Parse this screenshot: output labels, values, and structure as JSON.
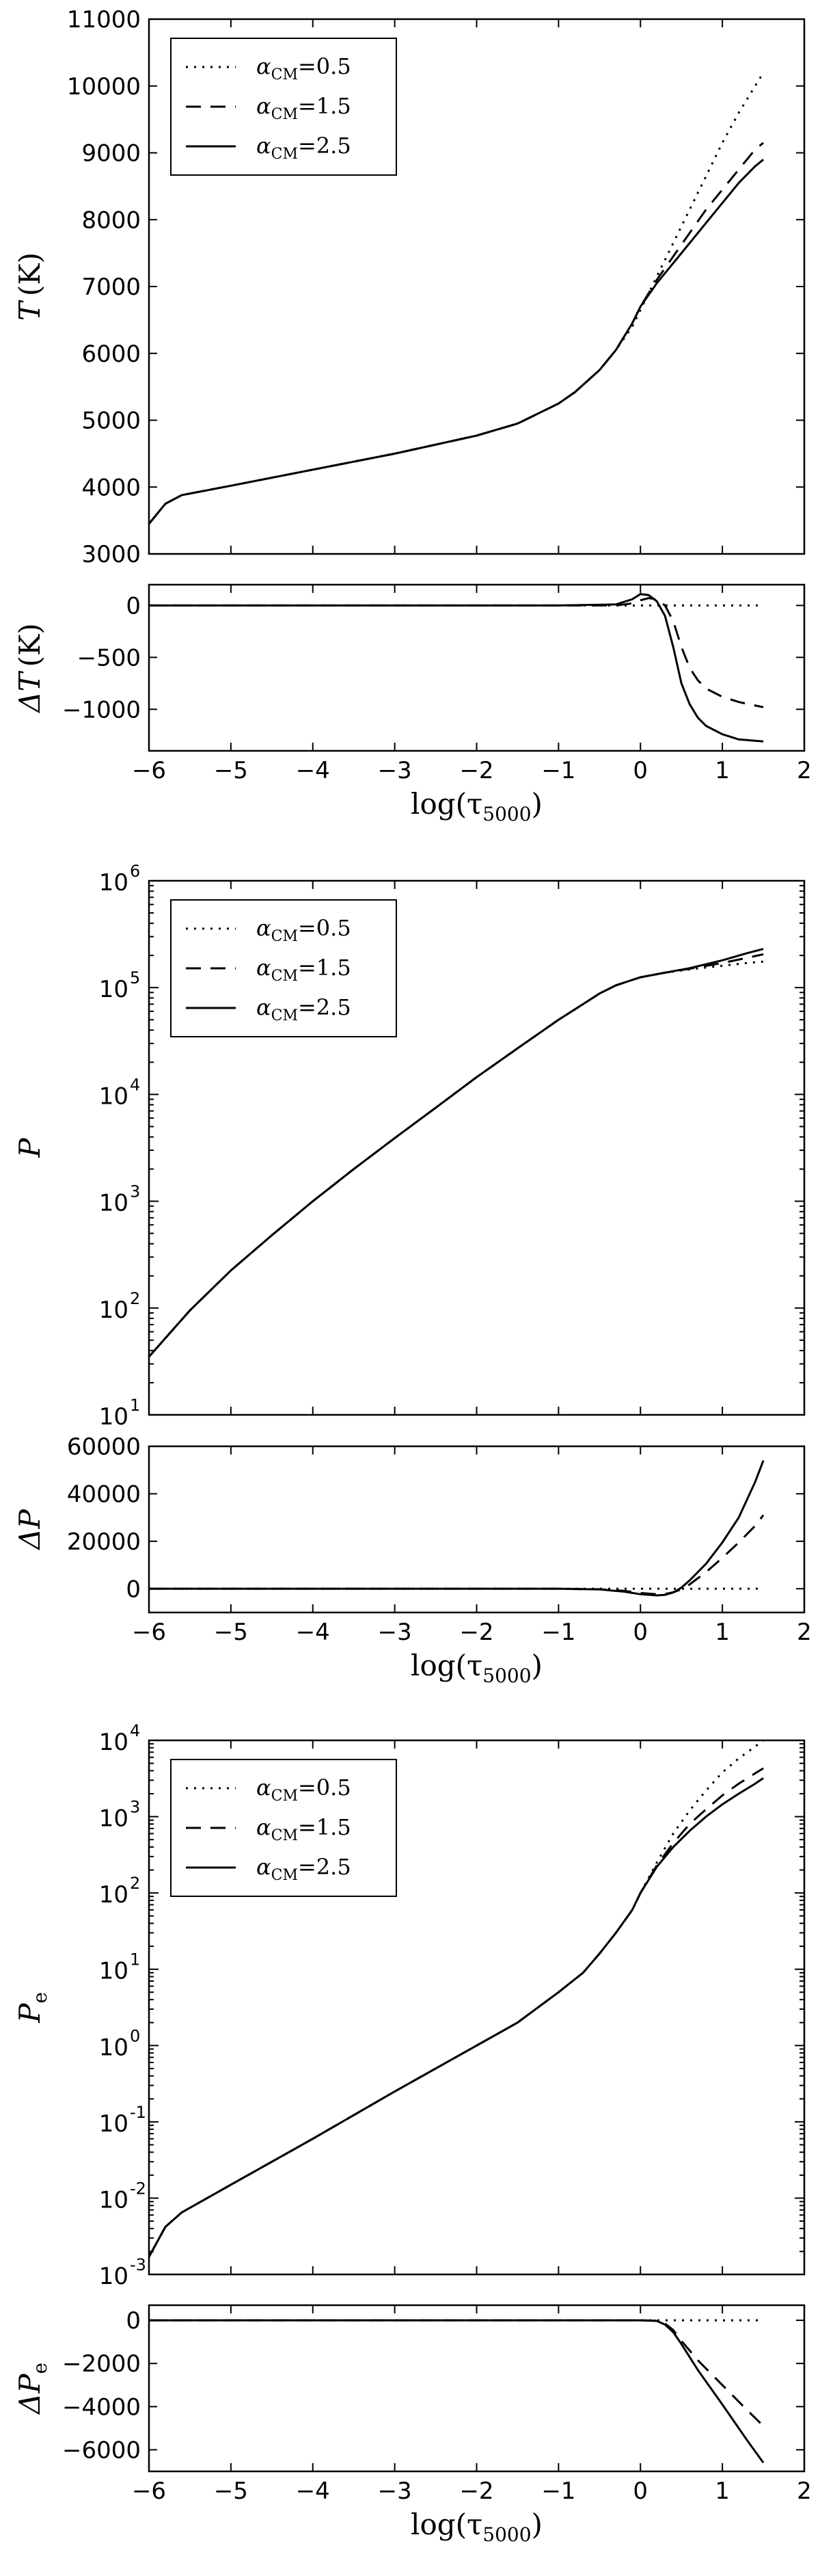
{
  "chart_data": [
    {
      "type": "line",
      "ylabel": "T (K)",
      "ylabel_main": "T",
      "ylabel_unit": "(K)",
      "xlim": [
        -6,
        2
      ],
      "ylim": [
        3000,
        11000
      ],
      "yscale": "linear",
      "xticks": [
        -6,
        -5,
        -4,
        -3,
        -2,
        -1,
        0,
        1,
        2
      ],
      "yticks": [
        3000,
        4000,
        5000,
        6000,
        7000,
        8000,
        9000,
        10000,
        11000
      ],
      "show_xticklabels": false,
      "legend": "top-left",
      "series": [
        {
          "name": "α_CM = 0.5",
          "label_main": "α",
          "label_sub": "CM",
          "label_value": "=0.5",
          "style": "dotted",
          "x": [
            -6,
            -5.8,
            -5.6,
            -5,
            -4,
            -3,
            -2,
            -1.5,
            -1,
            -0.8,
            -0.5,
            -0.3,
            -0.1,
            0,
            0.2,
            0.4,
            0.6,
            0.8,
            1,
            1.2,
            1.4,
            1.5
          ],
          "y": [
            3450,
            3750,
            3880,
            4020,
            4260,
            4500,
            4770,
            4950,
            5250,
            5420,
            5750,
            6050,
            6400,
            6650,
            7150,
            7650,
            8150,
            8650,
            9150,
            9600,
            10000,
            10200
          ]
        },
        {
          "name": "α_CM = 1.5",
          "label_main": "α",
          "label_sub": "CM",
          "label_value": "=1.5",
          "style": "dashed",
          "x": [
            -6,
            -5.8,
            -5.6,
            -5,
            -4,
            -3,
            -2,
            -1.5,
            -1,
            -0.8,
            -0.5,
            -0.3,
            -0.1,
            0,
            0.2,
            0.4,
            0.6,
            0.8,
            1,
            1.2,
            1.4,
            1.5
          ],
          "y": [
            3450,
            3750,
            3880,
            4020,
            4260,
            4500,
            4770,
            4950,
            5250,
            5420,
            5750,
            6050,
            6450,
            6700,
            7100,
            7450,
            7800,
            8150,
            8450,
            8750,
            9050,
            9150
          ]
        },
        {
          "name": "α_CM = 2.5",
          "label_main": "α",
          "label_sub": "CM",
          "label_value": "=2.5",
          "style": "solid",
          "x": [
            -6,
            -5.8,
            -5.6,
            -5,
            -4,
            -3,
            -2,
            -1.5,
            -1,
            -0.8,
            -0.5,
            -0.3,
            -0.1,
            0,
            0.2,
            0.4,
            0.6,
            0.8,
            1,
            1.2,
            1.4,
            1.5
          ],
          "y": [
            3450,
            3750,
            3880,
            4020,
            4260,
            4500,
            4770,
            4950,
            5250,
            5420,
            5750,
            6050,
            6450,
            6700,
            7050,
            7350,
            7650,
            7950,
            8250,
            8550,
            8800,
            8900
          ]
        }
      ]
    },
    {
      "type": "line",
      "ylabel": "ΔT (K)",
      "ylabel_main": "ΔT",
      "ylabel_unit": "(K)",
      "xlabel": "log(τ5000)",
      "xlabel_main": "log(τ",
      "xlabel_sub": "5000",
      "xlabel_close": ")",
      "xlim": [
        -6,
        2
      ],
      "ylim": [
        -1400,
        200
      ],
      "yscale": "linear",
      "xticks": [
        -6,
        -5,
        -4,
        -3,
        -2,
        -1,
        0,
        1,
        2
      ],
      "yticks": [
        -1000,
        -500,
        0
      ],
      "show_xticklabels": true,
      "series": [
        {
          "name": "α_CM = 0.5",
          "style": "dotted",
          "x": [
            -6,
            -5,
            -4,
            -3,
            -2,
            -1,
            0,
            0.5,
            1,
            1.5
          ],
          "y": [
            0,
            0,
            0,
            0,
            0,
            0,
            0,
            0,
            0,
            0
          ]
        },
        {
          "name": "α_CM = 1.5",
          "style": "dashed",
          "x": [
            -6,
            -4,
            -2,
            -1,
            -0.3,
            -0.1,
            0,
            0.1,
            0.2,
            0.3,
            0.4,
            0.5,
            0.6,
            0.7,
            0.8,
            1.0,
            1.2,
            1.5
          ],
          "y": [
            0,
            0,
            0,
            0,
            0,
            20,
            50,
            70,
            60,
            0,
            -150,
            -400,
            -600,
            -720,
            -800,
            -880,
            -930,
            -980
          ]
        },
        {
          "name": "α_CM = 2.5",
          "style": "solid",
          "x": [
            -6,
            -4,
            -2,
            -1,
            -0.3,
            -0.1,
            0,
            0.1,
            0.2,
            0.3,
            0.4,
            0.5,
            0.6,
            0.7,
            0.8,
            1.0,
            1.2,
            1.5
          ],
          "y": [
            0,
            0,
            0,
            0,
            10,
            60,
            110,
            100,
            40,
            -100,
            -400,
            -750,
            -950,
            -1080,
            -1160,
            -1240,
            -1290,
            -1310
          ]
        }
      ]
    },
    {
      "type": "line",
      "ylabel": "P",
      "ylabel_main": "P",
      "xlim": [
        -6,
        2
      ],
      "ylim": [
        10,
        1000000
      ],
      "yscale": "log",
      "xticks": [
        -6,
        -5,
        -4,
        -3,
        -2,
        -1,
        0,
        1,
        2
      ],
      "ytick_exponents": [
        1,
        2,
        3,
        4,
        5,
        6
      ],
      "show_xticklabels": false,
      "legend": "top-left",
      "series": [
        {
          "name": "α_CM = 0.5",
          "label_main": "α",
          "label_sub": "CM",
          "label_value": "=0.5",
          "style": "dotted",
          "x": [
            -6,
            -5.5,
            -5,
            -4.5,
            -4,
            -3.5,
            -3,
            -2.5,
            -2,
            -1.5,
            -1,
            -0.7,
            -0.5,
            -0.3,
            -0.1,
            0,
            0.3,
            0.6,
            1,
            1.3,
            1.5
          ],
          "y": [
            35,
            95,
            225,
            480,
            1000,
            2000,
            3900,
            7500,
            14500,
            27000,
            50000,
            70000,
            88000,
            105000,
            118000,
            125000,
            138000,
            148000,
            160000,
            170000,
            175000
          ]
        },
        {
          "name": "α_CM = 1.5",
          "label_main": "α",
          "label_sub": "CM",
          "label_value": "=1.5",
          "style": "dashed",
          "x": [
            -6,
            -5.5,
            -5,
            -4.5,
            -4,
            -3.5,
            -3,
            -2.5,
            -2,
            -1.5,
            -1,
            -0.7,
            -0.5,
            -0.3,
            -0.1,
            0,
            0.3,
            0.6,
            1,
            1.3,
            1.5
          ],
          "y": [
            35,
            95,
            225,
            480,
            1000,
            2000,
            3900,
            7500,
            14500,
            27000,
            50000,
            70000,
            88000,
            105000,
            118000,
            125000,
            138000,
            150000,
            170000,
            190000,
            205000
          ]
        },
        {
          "name": "α_CM = 2.5",
          "label_main": "α",
          "label_sub": "CM",
          "label_value": "=2.5",
          "style": "solid",
          "x": [
            -6,
            -5.5,
            -5,
            -4.5,
            -4,
            -3.5,
            -3,
            -2.5,
            -2,
            -1.5,
            -1,
            -0.7,
            -0.5,
            -0.3,
            -0.1,
            0,
            0.3,
            0.6,
            1,
            1.3,
            1.5
          ],
          "y": [
            35,
            95,
            225,
            480,
            1000,
            2000,
            3900,
            7500,
            14500,
            27000,
            50000,
            70000,
            88000,
            105000,
            118000,
            125000,
            138000,
            152000,
            180000,
            210000,
            230000
          ]
        }
      ]
    },
    {
      "type": "line",
      "ylabel": "ΔP",
      "ylabel_main": "ΔP",
      "xlabel": "log(τ5000)",
      "xlabel_main": "log(τ",
      "xlabel_sub": "5000",
      "xlabel_close": ")",
      "xlim": [
        -6,
        2
      ],
      "ylim": [
        -10000,
        60000
      ],
      "yscale": "linear",
      "xticks": [
        -6,
        -5,
        -4,
        -3,
        -2,
        -1,
        0,
        1,
        2
      ],
      "yticks": [
        0,
        20000,
        40000,
        60000
      ],
      "show_xticklabels": true,
      "series": [
        {
          "name": "α_CM = 0.5",
          "style": "dotted",
          "x": [
            -6,
            -5,
            -4,
            -3,
            -2,
            -1,
            0,
            0.5,
            1,
            1.5
          ],
          "y": [
            0,
            0,
            0,
            0,
            0,
            0,
            0,
            0,
            0,
            0
          ]
        },
        {
          "name": "α_CM = 1.5",
          "style": "dashed",
          "x": [
            -6,
            -4,
            -2,
            -1,
            -0.5,
            -0.2,
            0,
            0.2,
            0.3,
            0.4,
            0.5,
            0.6,
            0.8,
            1.0,
            1.2,
            1.4,
            1.5
          ],
          "y": [
            0,
            0,
            0,
            0,
            -200,
            -900,
            -1800,
            -2300,
            -2200,
            -1500,
            -200,
            1800,
            7000,
            13000,
            19500,
            26500,
            31000
          ]
        },
        {
          "name": "α_CM = 2.5",
          "style": "solid",
          "x": [
            -6,
            -4,
            -2,
            -1,
            -0.5,
            -0.2,
            0,
            0.2,
            0.3,
            0.4,
            0.5,
            0.6,
            0.8,
            1.0,
            1.2,
            1.4,
            1.5
          ],
          "y": [
            0,
            0,
            0,
            0,
            -300,
            -1200,
            -2300,
            -2800,
            -2600,
            -1600,
            500,
            3500,
            10500,
            19500,
            30000,
            45000,
            54000
          ]
        }
      ]
    },
    {
      "type": "line",
      "ylabel": "Pe",
      "ylabel_main": "P",
      "ylabel_sub": "e",
      "xlim": [
        -6,
        2
      ],
      "ylim": [
        0.001,
        10000
      ],
      "yscale": "log",
      "xticks": [
        -6,
        -5,
        -4,
        -3,
        -2,
        -1,
        0,
        1,
        2
      ],
      "ytick_exponents": [
        -3,
        -2,
        -1,
        0,
        1,
        2,
        3,
        4
      ],
      "show_xticklabels": false,
      "legend": "top-left",
      "series": [
        {
          "name": "α_CM = 0.5",
          "label_main": "α",
          "label_sub": "CM",
          "label_value": "=0.5",
          "style": "dotted",
          "x": [
            -6,
            -5.8,
            -5.6,
            -5,
            -4,
            -3,
            -2,
            -1.5,
            -1,
            -0.7,
            -0.5,
            -0.3,
            -0.1,
            0,
            0.2,
            0.4,
            0.6,
            0.8,
            1.0,
            1.2,
            1.4,
            1.5
          ],
          "y": [
            0.0017,
            0.0042,
            0.0065,
            0.015,
            0.06,
            0.25,
            1.0,
            2.0,
            5.0,
            9.0,
            16,
            30,
            60,
            100,
            250,
            600,
            1200,
            2200,
            3800,
            5800,
            8300,
            10000
          ]
        },
        {
          "name": "α_CM = 1.5",
          "label_main": "α",
          "label_sub": "CM",
          "label_value": "=1.5",
          "style": "dashed",
          "x": [
            -6,
            -5.8,
            -5.6,
            -5,
            -4,
            -3,
            -2,
            -1.5,
            -1,
            -0.7,
            -0.5,
            -0.3,
            -0.1,
            0,
            0.2,
            0.4,
            0.6,
            0.8,
            1.0,
            1.2,
            1.4,
            1.5
          ],
          "y": [
            0.0017,
            0.0042,
            0.0065,
            0.015,
            0.06,
            0.25,
            1.0,
            2.0,
            5.0,
            9.0,
            16,
            30,
            60,
            100,
            230,
            450,
            800,
            1250,
            1900,
            2700,
            3700,
            4300
          ]
        },
        {
          "name": "α_CM = 2.5",
          "label_main": "α",
          "label_sub": "CM",
          "label_value": "=2.5",
          "style": "solid",
          "x": [
            -6,
            -5.8,
            -5.6,
            -5,
            -4,
            -3,
            -2,
            -1.5,
            -1,
            -0.7,
            -0.5,
            -0.3,
            -0.1,
            0,
            0.2,
            0.4,
            0.6,
            0.8,
            1.0,
            1.2,
            1.4,
            1.5
          ],
          "y": [
            0.0017,
            0.0042,
            0.0065,
            0.015,
            0.06,
            0.25,
            1.0,
            2.0,
            5.0,
            9.0,
            16,
            30,
            60,
            100,
            220,
            400,
            650,
            1000,
            1450,
            2000,
            2700,
            3200
          ]
        }
      ]
    },
    {
      "type": "line",
      "ylabel": "ΔPe",
      "ylabel_main": "ΔP",
      "ylabel_sub": "e",
      "xlabel": "log(τ5000)",
      "xlabel_main": "log(τ",
      "xlabel_sub": "5000",
      "xlabel_close": ")",
      "xlim": [
        -6,
        2
      ],
      "ylim": [
        -7000,
        700
      ],
      "yscale": "linear",
      "xticks": [
        -6,
        -5,
        -4,
        -3,
        -2,
        -1,
        0,
        1,
        2
      ],
      "yticks": [
        -6000,
        -4000,
        -2000,
        0
      ],
      "show_xticklabels": true,
      "series": [
        {
          "name": "α_CM = 0.5",
          "style": "dotted",
          "x": [
            -6,
            -5,
            -4,
            -3,
            -2,
            -1,
            0,
            0.5,
            1,
            1.5
          ],
          "y": [
            0,
            0,
            0,
            0,
            0,
            0,
            0,
            0,
            0,
            0
          ]
        },
        {
          "name": "α_CM = 1.5",
          "style": "dashed",
          "x": [
            -6,
            -4,
            -2,
            -1,
            0,
            0.2,
            0.3,
            0.4,
            0.5,
            0.7,
            1.0,
            1.3,
            1.5
          ],
          "y": [
            0,
            0,
            0,
            0,
            0,
            -20,
            -150,
            -450,
            -950,
            -1850,
            -3000,
            -4150,
            -4900
          ]
        },
        {
          "name": "α_CM = 2.5",
          "style": "solid",
          "x": [
            -6,
            -4,
            -2,
            -1,
            0,
            0.2,
            0.3,
            0.4,
            0.5,
            0.7,
            1.0,
            1.3,
            1.5
          ],
          "y": [
            0,
            0,
            0,
            0,
            0,
            -30,
            -200,
            -550,
            -1100,
            -2300,
            -3900,
            -5550,
            -6600
          ]
        }
      ]
    }
  ]
}
